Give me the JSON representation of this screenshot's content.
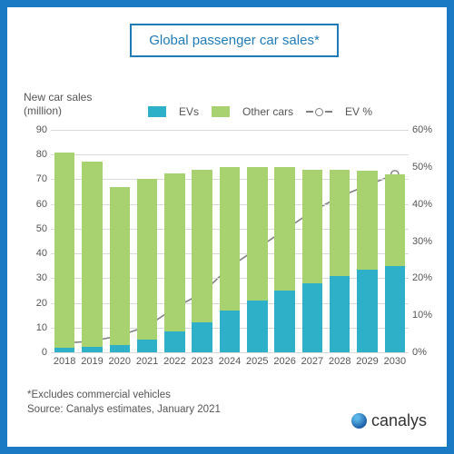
{
  "title": "Global passenger car sales*",
  "y_axis_label": "New car sales\n(million)",
  "legend": {
    "evs": "EVs",
    "other": "Other cars",
    "evpct": "EV %"
  },
  "footnote_line1": "*Excludes commercial vehicles",
  "footnote_line2": "Source: Canalys estimates, January 2021",
  "logo_text": "canalys",
  "chart": {
    "type": "stacked-bar-with-line",
    "categories": [
      "2018",
      "2019",
      "2020",
      "2021",
      "2022",
      "2023",
      "2024",
      "2025",
      "2026",
      "2027",
      "2028",
      "2029",
      "2030"
    ],
    "ev_values": [
      2,
      2.3,
      3,
      5,
      8.5,
      12,
      17,
      21,
      25,
      28,
      31,
      33.5,
      35
    ],
    "other_values": [
      79,
      75,
      64,
      65,
      64,
      62,
      58,
      54,
      50,
      46,
      43,
      40,
      37
    ],
    "ev_pct": [
      2.5,
      3,
      4.5,
      7,
      12,
      16,
      23,
      28,
      33,
      38,
      42,
      45,
      48
    ],
    "colors": {
      "ev": "#2eb0c8",
      "other": "#a7d26f",
      "line": "#808080",
      "marker_fill": "#ffffff",
      "grid": "#d9d9d9",
      "background": "#ffffff",
      "frame": "#1a7bc4",
      "title_border": "#1f7bb8",
      "text": "#555555"
    },
    "left_axis": {
      "min": 0,
      "max": 90,
      "step": 10
    },
    "right_axis": {
      "min": 0,
      "max": 60,
      "step": 10,
      "suffix": "%"
    },
    "bar_width_ratio": 0.74,
    "line_width": 1.6,
    "marker_radius": 4.2,
    "title_fontsize": 15,
    "label_fontsize": 12,
    "tick_fontsize": 11
  }
}
